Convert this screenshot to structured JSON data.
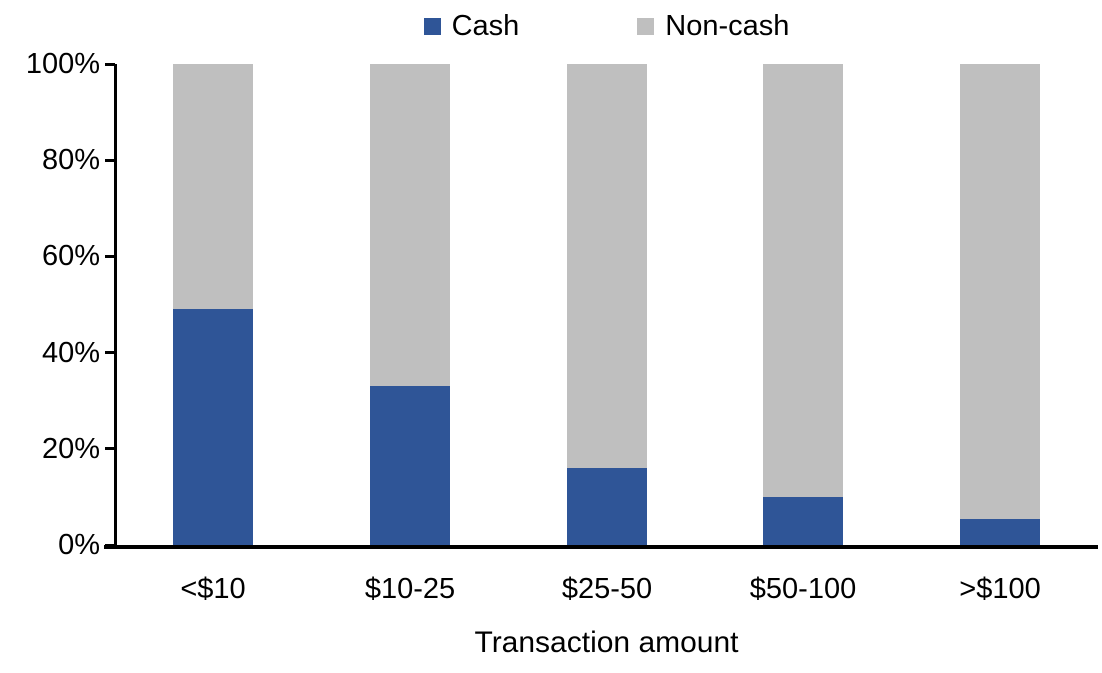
{
  "chart_data": {
    "type": "bar",
    "subtype": "stacked-100",
    "categories": [
      "<$10",
      "$10-25",
      "$25-50",
      "$50-100",
      ">$100"
    ],
    "series": [
      {
        "name": "Cash",
        "color": "#2F5597",
        "values": [
          49,
          33,
          16,
          10,
          5.5
        ]
      },
      {
        "name": "Non-cash",
        "color": "#BFBFBF",
        "values": [
          51,
          67,
          84,
          90,
          94.5
        ]
      }
    ],
    "title": "",
    "xlabel": "Transaction amount",
    "ylabel": "",
    "y_ticks": [
      "0%",
      "20%",
      "40%",
      "60%",
      "80%",
      "100%"
    ],
    "ylim": [
      0,
      100
    ],
    "grid": false,
    "legend_position": "top-center",
    "axis_color": "#000000",
    "background_color": "#FFFFFF"
  }
}
